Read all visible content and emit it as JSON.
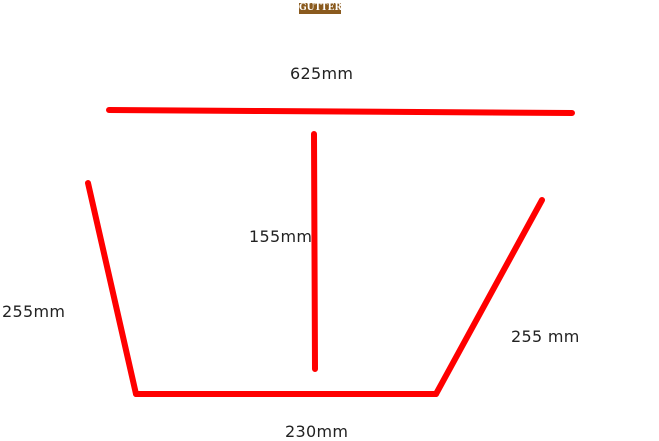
{
  "corner_mark": "'",
  "title": "GUTTER",
  "dimensions": {
    "top_width": "625mm",
    "depth": "155mm",
    "left_side": "255mm",
    "right_side": "255 mm",
    "base_width": "230mm"
  },
  "colors": {
    "stroke": "#ff0000",
    "title_background": "#8a5a1e",
    "text": "#222222"
  }
}
